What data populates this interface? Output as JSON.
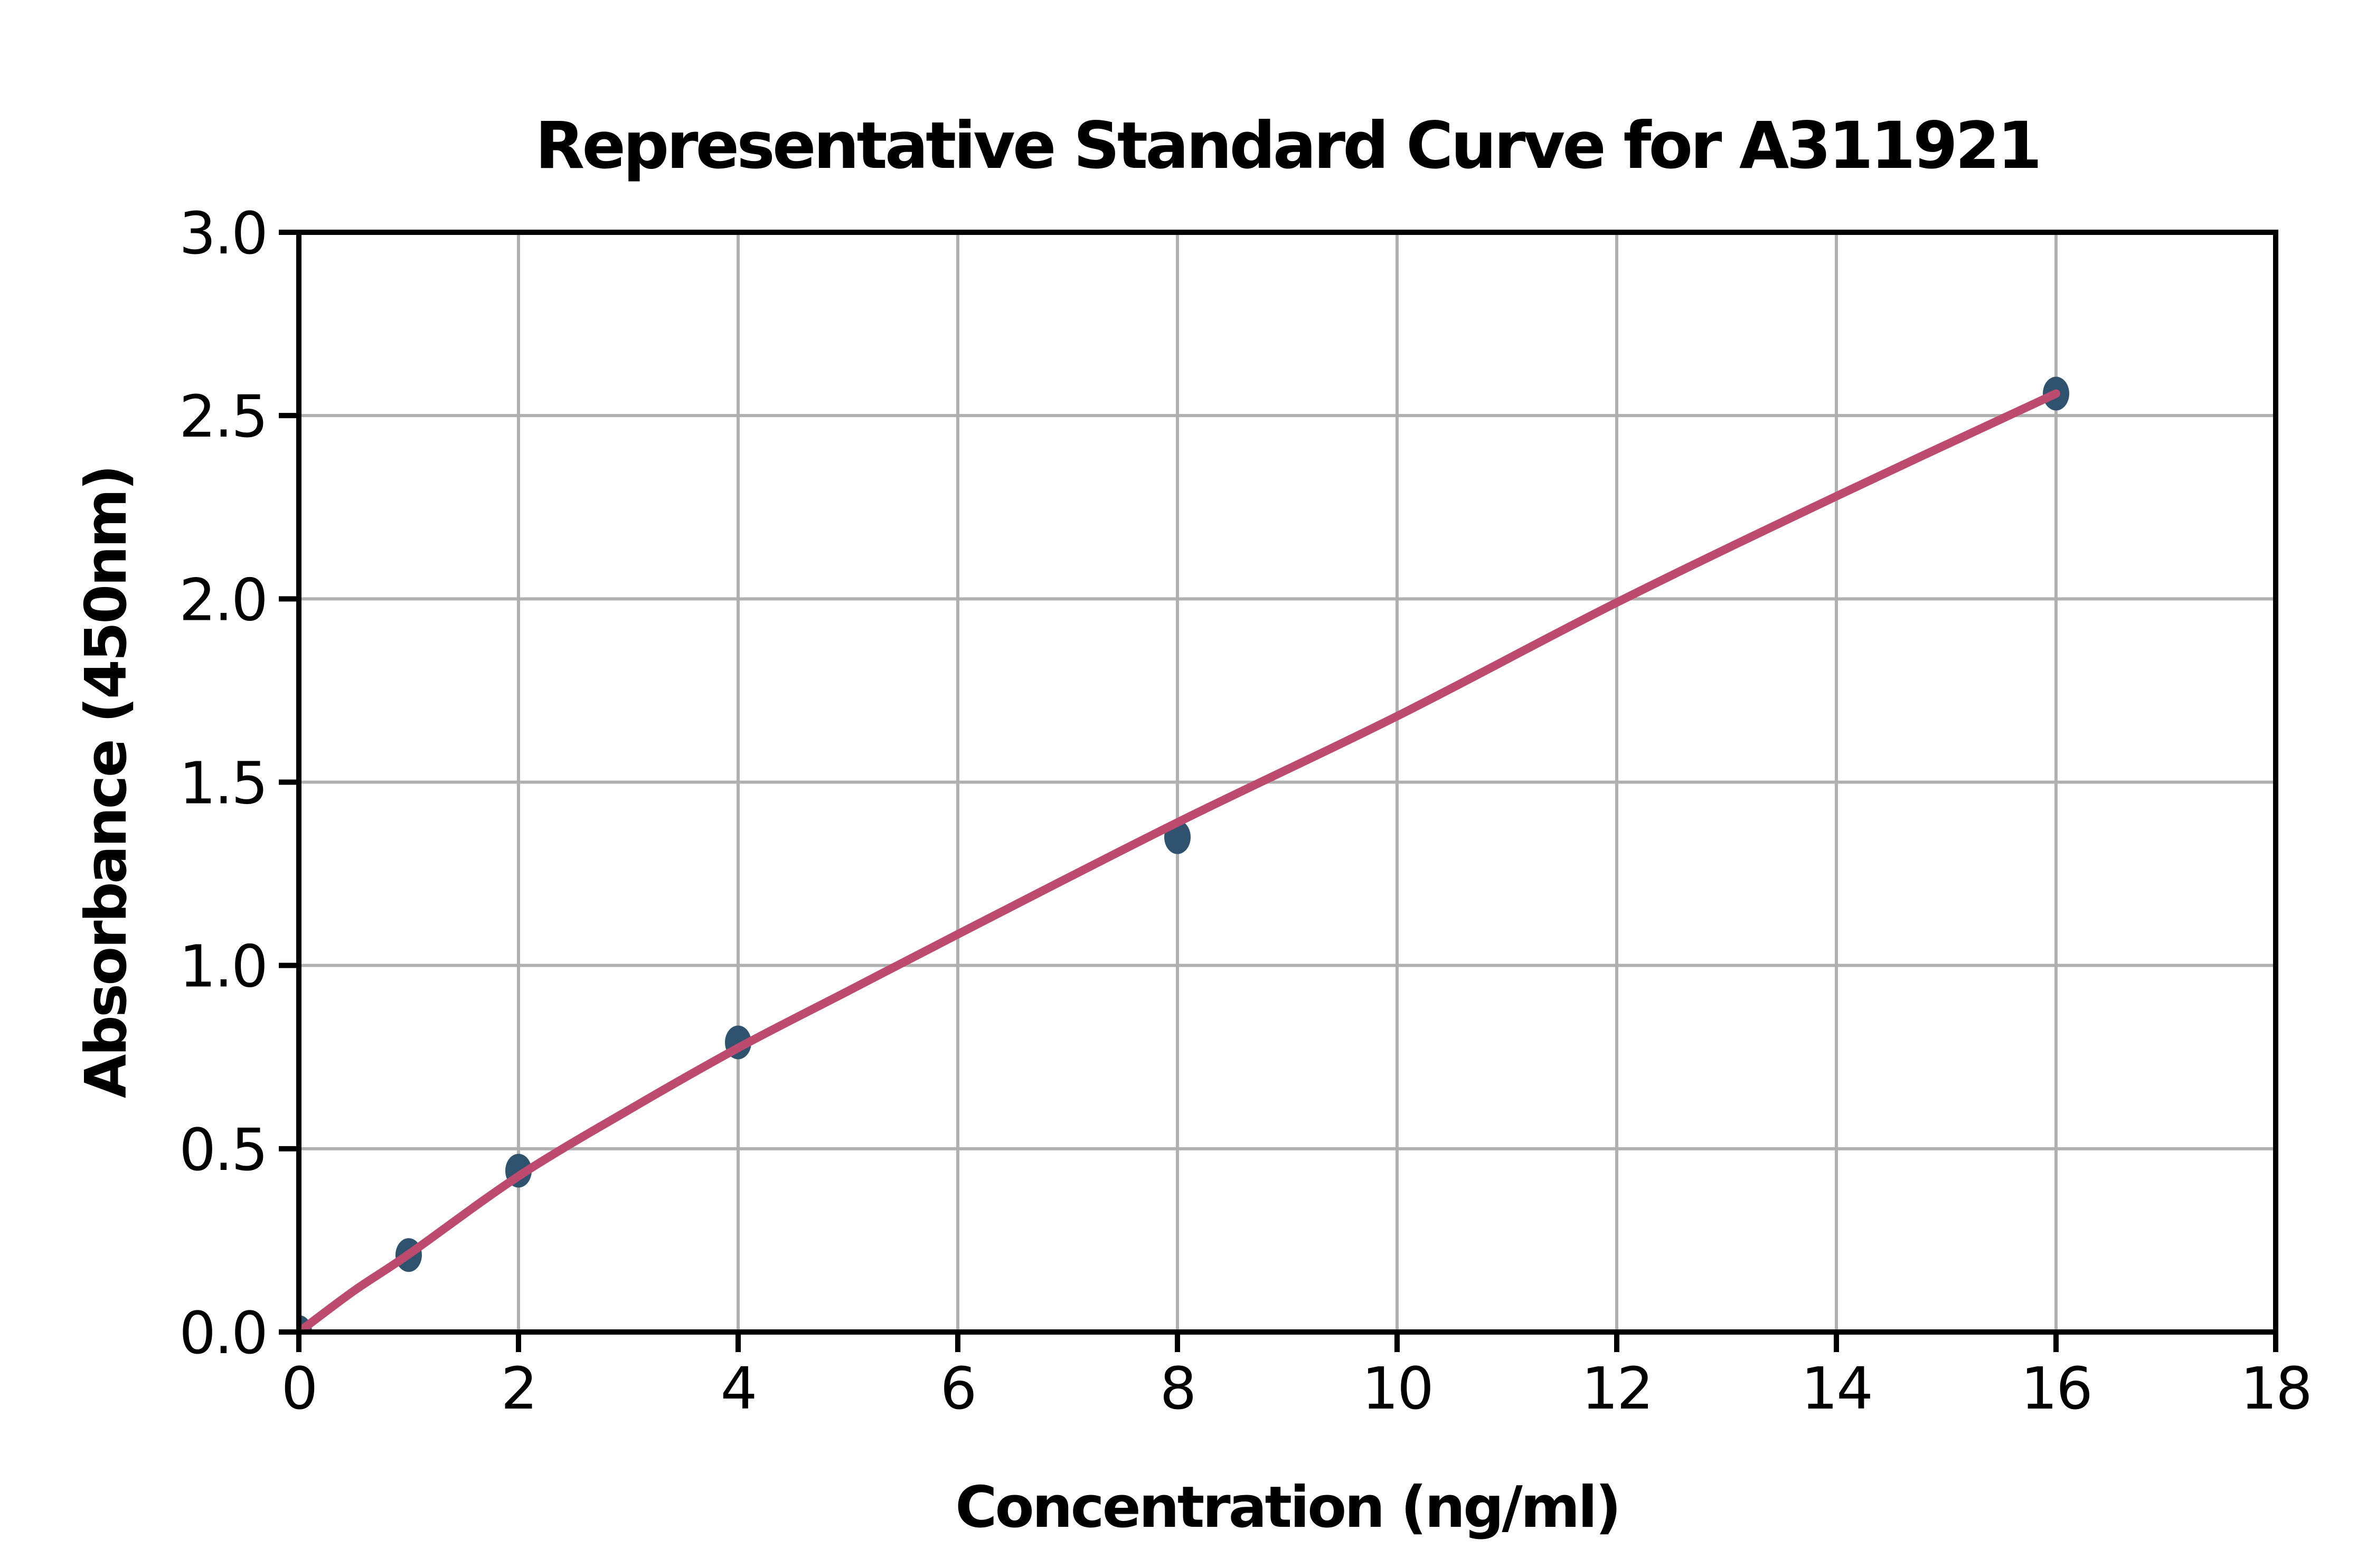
{
  "chart_data": {
    "type": "scatter",
    "title": "Representative Standard Curve for A311921",
    "xlabel": "Concentration (ng/ml)",
    "ylabel": "Absorbance (450nm)",
    "xlim": [
      0,
      18
    ],
    "ylim": [
      0.0,
      3.0
    ],
    "x_ticks": [
      "0",
      "2",
      "4",
      "6",
      "8",
      "10",
      "12",
      "14",
      "16",
      "18"
    ],
    "x_tick_values": [
      0,
      2,
      4,
      6,
      8,
      10,
      12,
      14,
      16,
      18
    ],
    "y_ticks": [
      "0.0",
      "0.5",
      "1.0",
      "1.5",
      "2.0",
      "2.5",
      "3.0"
    ],
    "y_tick_values": [
      0.0,
      0.5,
      1.0,
      1.5,
      2.0,
      2.5,
      3.0
    ],
    "grid": true,
    "legend": "none",
    "points": [
      {
        "x": 0,
        "y": 0.0
      },
      {
        "x": 1,
        "y": 0.21
      },
      {
        "x": 2,
        "y": 0.44
      },
      {
        "x": 4,
        "y": 0.79
      },
      {
        "x": 8,
        "y": 1.35
      },
      {
        "x": 16,
        "y": 2.56
      }
    ],
    "fit_curve": [
      [
        0,
        0.0
      ],
      [
        0.5,
        0.112
      ],
      [
        1,
        0.212
      ],
      [
        2,
        0.425
      ],
      [
        3,
        0.605
      ],
      [
        4,
        0.775
      ],
      [
        5,
        0.93
      ],
      [
        6,
        1.085
      ],
      [
        8,
        1.39
      ],
      [
        10,
        1.68
      ],
      [
        12,
        1.99
      ],
      [
        14,
        2.28
      ],
      [
        16,
        2.56
      ]
    ],
    "colors": {
      "curve": "#bd4b6f",
      "marker": "#2f536e",
      "grid": "#b0b0b0",
      "axis": "#000000",
      "background": "#ffffff"
    }
  }
}
